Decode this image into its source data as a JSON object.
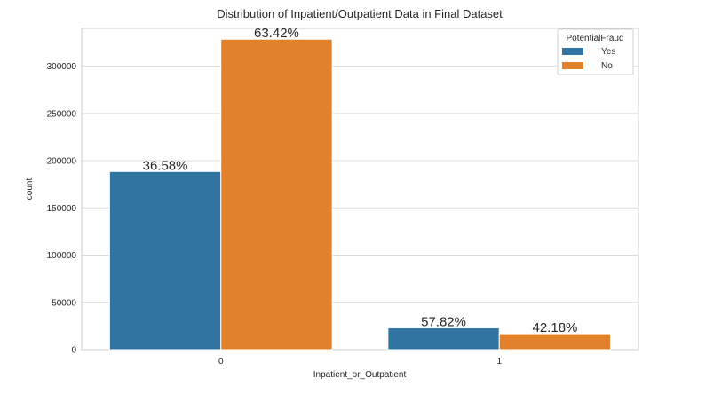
{
  "chart_data": {
    "type": "bar",
    "title": "Distribution of Inpatient/Outpatient Data in Final Dataset",
    "xlabel": "Inpatient_or_Outpatient",
    "ylabel": "count",
    "categories": [
      "0",
      "1"
    ],
    "series": [
      {
        "name": "Yes",
        "color": "#3274a1",
        "values": [
          188500,
          23000
        ],
        "labels": [
          "36.58%",
          "57.82%"
        ]
      },
      {
        "name": "No",
        "color": "#e1812c",
        "values": [
          328500,
          16800
        ],
        "labels": [
          "63.42%",
          "42.18%"
        ]
      }
    ],
    "ylim": [
      0,
      340000
    ],
    "yticks": [
      0,
      50000,
      100000,
      150000,
      200000,
      250000,
      300000
    ],
    "grid": true,
    "legend": {
      "title": "PotentialFraud",
      "placement": "top-right"
    }
  }
}
